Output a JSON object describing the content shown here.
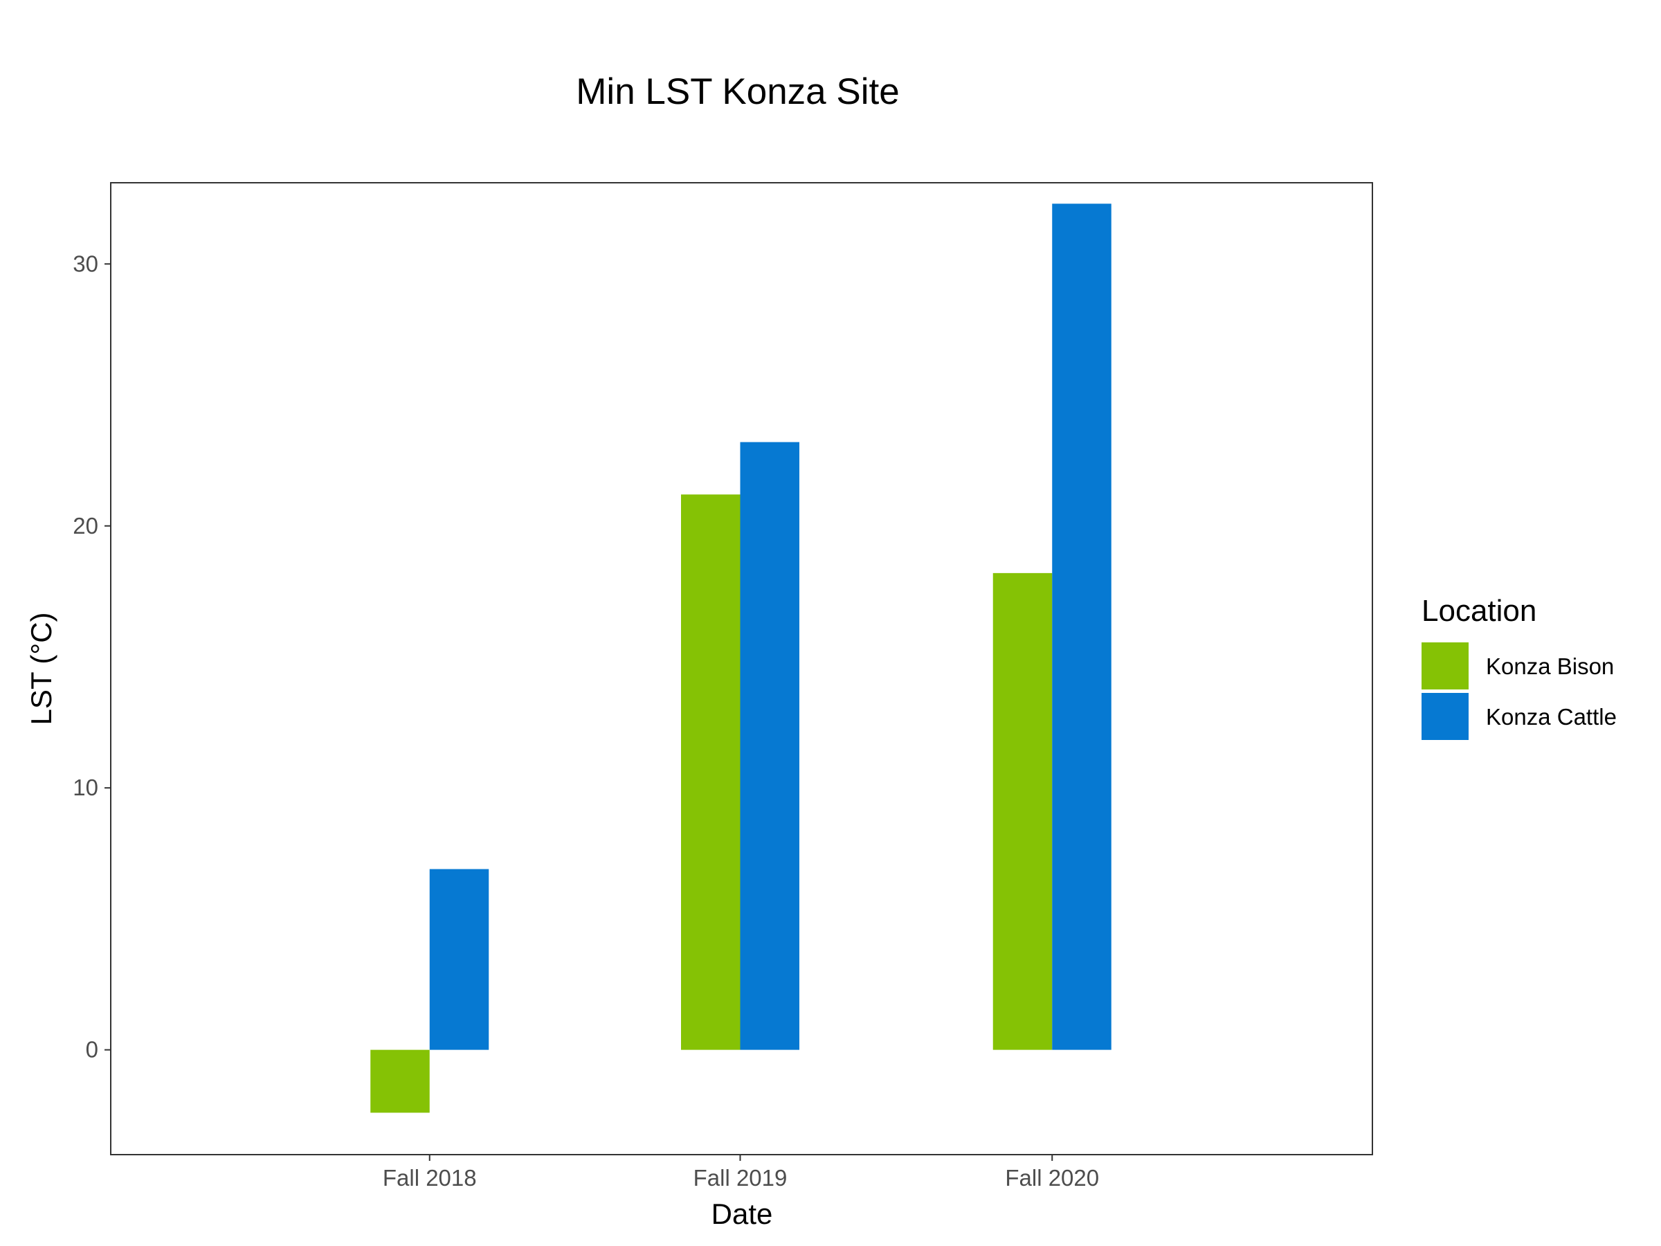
{
  "chart_data": {
    "type": "bar",
    "title": "Min LST Konza Site",
    "xlabel": "Date",
    "ylabel": "LST (°C)",
    "categories": [
      "Fall 2018",
      "Fall 2019",
      "Fall 2020"
    ],
    "series": [
      {
        "name": "Konza Bison",
        "color": "#85c205",
        "values": [
          -2.4,
          21.2,
          18.2
        ]
      },
      {
        "name": "Konza Cattle",
        "color": "#0679d2",
        "values": [
          6.9,
          23.2,
          32.3
        ]
      }
    ],
    "yticks": [
      0,
      10,
      20,
      30
    ],
    "ylim": [
      -4,
      33.1
    ],
    "grid": false,
    "legend": {
      "title": "Location",
      "position": "right"
    }
  }
}
